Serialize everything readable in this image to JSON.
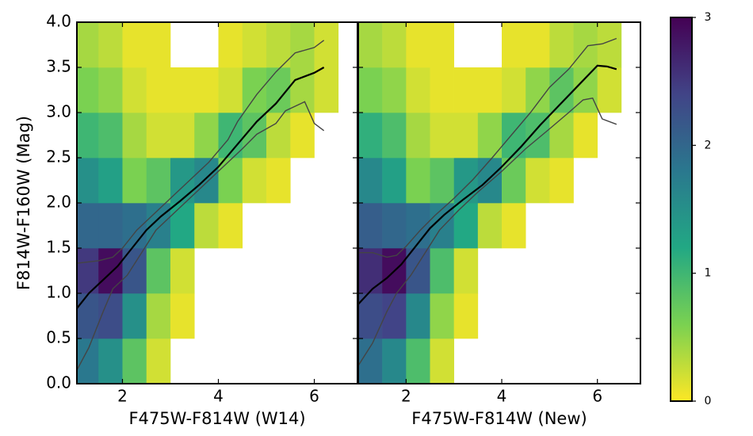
{
  "chart_data": [
    {
      "type": "heatmap-lines",
      "xlabel": "F475W-F814W (W14)",
      "ylabel": "F814W-F160W (Mag)",
      "xlim": [
        1.05,
        6.9
      ],
      "ylim": [
        0,
        4
      ],
      "xticks": [
        2,
        4,
        6
      ],
      "yticks": [
        {
          "value": 0,
          "label": "0.0"
        },
        {
          "value": 0.5,
          "label": "0.5"
        },
        {
          "value": 1,
          "label": "1.0"
        },
        {
          "value": 1.5,
          "label": "1.5"
        },
        {
          "value": 2,
          "label": "2.0"
        },
        {
          "value": 2.5,
          "label": "2.5"
        },
        {
          "value": 3,
          "label": "3.0"
        },
        {
          "value": 3.5,
          "label": "3.5"
        },
        {
          "value": 4,
          "label": "4.0"
        }
      ],
      "x_bins": [
        1,
        1.5,
        2,
        2.5,
        3,
        3.5,
        4,
        4.5,
        5,
        5.5,
        6,
        6.5,
        7
      ],
      "y_bins": [
        0,
        0.5,
        1,
        1.5,
        2,
        2.5,
        3,
        3.5,
        4
      ],
      "z": [
        [
          1.8,
          1.5,
          0.8,
          0.2,
          null,
          null,
          null,
          null,
          null,
          null,
          null,
          null
        ],
        [
          2.2,
          2.3,
          1.5,
          0.4,
          0.1,
          null,
          null,
          null,
          null,
          null,
          null,
          null
        ],
        [
          2.5,
          2.9,
          2.2,
          0.8,
          0.2,
          null,
          null,
          null,
          null,
          null,
          null,
          null
        ],
        [
          2.0,
          2.0,
          1.9,
          1.7,
          1.2,
          0.3,
          0.1,
          null,
          null,
          null,
          null,
          null
        ],
        [
          1.5,
          1.3,
          0.6,
          0.8,
          1.4,
          1.6,
          0.6,
          0.2,
          0.1,
          null,
          null,
          null
        ],
        [
          1.0,
          0.9,
          0.4,
          0.2,
          0.2,
          0.5,
          1.0,
          0.8,
          0.3,
          0.1,
          null,
          null
        ],
        [
          0.6,
          0.5,
          0.2,
          0.1,
          0.1,
          0.1,
          0.2,
          0.6,
          0.7,
          0.4,
          0.2,
          null
        ],
        [
          0.4,
          0.3,
          0.1,
          0.1,
          null,
          null,
          0.1,
          0.2,
          0.3,
          0.4,
          0.2,
          null
        ]
      ],
      "series": [
        {
          "color": "#000000",
          "x": [
            1,
            1.3,
            1.6,
            1.9,
            2.2,
            2.5,
            2.8,
            3.2,
            3.6,
            4,
            4.4,
            4.8,
            5.2,
            5.6,
            6,
            6.2
          ],
          "values": [
            0.8,
            1.0,
            1.15,
            1.3,
            1.5,
            1.7,
            1.85,
            2.02,
            2.2,
            2.4,
            2.65,
            2.9,
            3.1,
            3.36,
            3.44,
            3.5
          ]
        },
        {
          "color": "#444444",
          "x": [
            1,
            1.5,
            1.8,
            2,
            2.3,
            2.6,
            3,
            3.4,
            3.8,
            4.2,
            4.4,
            4.8,
            5.2,
            5.6,
            6,
            6.2
          ],
          "values": [
            1.33,
            1.36,
            1.4,
            1.5,
            1.7,
            1.85,
            2.05,
            2.25,
            2.45,
            2.7,
            2.9,
            3.2,
            3.45,
            3.66,
            3.72,
            3.8
          ]
        },
        {
          "color": "#444444",
          "x": [
            1,
            1.3,
            1.6,
            1.8,
            2.1,
            2.4,
            2.7,
            3.1,
            3.5,
            4,
            4.5,
            4.8,
            5.2,
            5.4,
            5.8,
            6,
            6.2
          ],
          "values": [
            0.1,
            0.4,
            0.8,
            1.05,
            1.2,
            1.45,
            1.7,
            1.9,
            2.1,
            2.35,
            2.6,
            2.76,
            2.88,
            3.02,
            3.12,
            2.88,
            2.8
          ]
        }
      ]
    },
    {
      "type": "heatmap-lines",
      "xlabel": "F475W-F814W (New)",
      "xlim": [
        1,
        6.9
      ],
      "ylim": [
        0,
        4
      ],
      "xticks": [
        2,
        4,
        6
      ],
      "yticks": [
        0,
        0.5,
        1,
        1.5,
        2,
        2.5,
        3,
        3.5,
        4
      ],
      "x_bins": [
        1,
        1.5,
        2,
        2.5,
        3,
        3.5,
        4,
        4.5,
        5,
        5.5,
        6,
        6.5,
        7
      ],
      "y_bins": [
        0,
        0.5,
        1,
        1.5,
        2,
        2.5,
        3,
        3.5,
        4
      ],
      "z": [
        [
          1.9,
          1.6,
          0.9,
          0.2,
          null,
          null,
          null,
          null,
          null,
          null,
          null,
          null
        ],
        [
          2.3,
          2.4,
          1.6,
          0.5,
          0.1,
          null,
          null,
          null,
          null,
          null,
          null,
          null
        ],
        [
          2.6,
          2.9,
          2.2,
          0.9,
          0.2,
          null,
          null,
          null,
          null,
          null,
          null,
          null
        ],
        [
          2.1,
          2.0,
          1.9,
          1.7,
          1.2,
          0.3,
          0.1,
          null,
          null,
          null,
          null,
          null
        ],
        [
          1.6,
          1.3,
          0.6,
          0.8,
          1.4,
          1.6,
          0.7,
          0.2,
          0.1,
          null,
          null,
          null
        ],
        [
          1.1,
          0.9,
          0.4,
          0.2,
          0.2,
          0.5,
          1.0,
          0.9,
          0.4,
          0.1,
          null,
          null
        ],
        [
          0.6,
          0.5,
          0.2,
          0.1,
          0.1,
          0.1,
          0.2,
          0.5,
          0.8,
          0.5,
          0.2,
          null
        ],
        [
          0.4,
          0.3,
          0.1,
          0.1,
          null,
          null,
          0.1,
          0.1,
          0.3,
          0.4,
          0.3,
          null
        ]
      ],
      "series": [
        {
          "color": "#000000",
          "x": [
            1,
            1.3,
            1.6,
            1.9,
            2.2,
            2.5,
            2.8,
            3.2,
            3.6,
            4,
            4.4,
            4.8,
            5.2,
            5.6,
            6,
            6.2,
            6.4
          ],
          "values": [
            0.88,
            1.05,
            1.17,
            1.32,
            1.52,
            1.72,
            1.87,
            2.04,
            2.2,
            2.4,
            2.62,
            2.86,
            3.08,
            3.3,
            3.52,
            3.51,
            3.48
          ]
        },
        {
          "color": "#444444",
          "x": [
            1,
            1.3,
            1.6,
            1.8,
            2,
            2.3,
            2.6,
            3,
            3.4,
            3.8,
            4.2,
            4.6,
            5,
            5.4,
            5.8,
            6.1,
            6.4
          ],
          "values": [
            1.45,
            1.45,
            1.4,
            1.42,
            1.52,
            1.7,
            1.86,
            2.05,
            2.26,
            2.5,
            2.75,
            3.0,
            3.28,
            3.48,
            3.74,
            3.76,
            3.82
          ]
        },
        {
          "color": "#444444",
          "x": [
            1,
            1.3,
            1.6,
            1.8,
            2.1,
            2.4,
            2.7,
            3.1,
            3.5,
            4,
            4.5,
            5,
            5.4,
            5.7,
            5.9,
            6.1,
            6.4
          ],
          "values": [
            0.2,
            0.45,
            0.8,
            1.0,
            1.2,
            1.45,
            1.7,
            1.92,
            2.12,
            2.35,
            2.6,
            2.82,
            3.0,
            3.14,
            3.16,
            2.93,
            2.87
          ]
        }
      ]
    },
    {
      "type": "colorbar",
      "ylim": [
        0,
        3
      ],
      "yticks": [
        0,
        1,
        2,
        3
      ],
      "colormap": [
        "#fde725",
        "#7ad151",
        "#22a884",
        "#2a788e",
        "#414487",
        "#440154"
      ]
    }
  ]
}
